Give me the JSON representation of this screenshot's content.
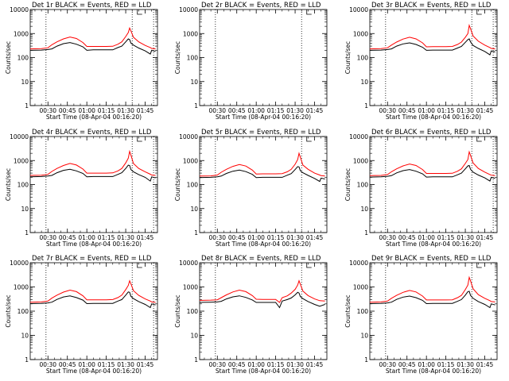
{
  "chart_data": [
    {
      "type": "line",
      "title": "Det 1r BLACK = Events, RED = LLD",
      "xlabel": "Start Time (08-Apr-04 00:16:20)",
      "ylabel": "Counts/sec",
      "yscale": "log",
      "ylim": [
        1,
        10000
      ],
      "xlim": [
        "00:16:20",
        "01:54:30"
      ],
      "x_ticks": [
        "00:30",
        "00:45",
        "01:00",
        "01:15",
        "01:30",
        "01:45"
      ],
      "y_ticks": [
        "1",
        "10",
        "100",
        "1000",
        "10000"
      ],
      "vlines": [
        "00:28:30",
        "01:35:00",
        "01:51:30"
      ],
      "x": [
        "00:16:20",
        "00:25:00",
        "00:30:00",
        "00:33:00",
        "00:37:00",
        "00:42:00",
        "00:47:00",
        "00:52:00",
        "00:57:00",
        "01:00:00",
        "01:05:00",
        "01:10:00",
        "01:15:00",
        "01:20:00",
        "01:24:00",
        "01:27:00",
        "01:30:00",
        "01:32:00",
        "01:33:00",
        "01:34:00",
        "01:36:00",
        "01:40:00",
        "01:45:00",
        "01:49:00",
        "01:50:00",
        "01:53:00"
      ],
      "series": [
        {
          "values": [
            200,
            205,
            215,
            230,
            300,
            380,
            420,
            360,
            280,
            200,
            210,
            210,
            210,
            210,
            260,
            300,
            450,
            600,
            560,
            400,
            330,
            250,
            190,
            140,
            200,
            180
          ],
          "color": "#000000"
        },
        {
          "values": [
            230,
            235,
            255,
            340,
            450,
            600,
            720,
            620,
            420,
            290,
            290,
            290,
            290,
            295,
            360,
            450,
            750,
            1100,
            1700,
            1300,
            700,
            450,
            320,
            260,
            240,
            230
          ],
          "color": "#ff0000"
        }
      ]
    },
    {
      "type": "line",
      "title": "Det 2r BLACK = Events, RED = LLD",
      "xlabel": "Start Time (08-Apr-04 00:16:20)",
      "ylabel": "Counts/sec",
      "yscale": "log",
      "ylim": [
        1,
        10000
      ],
      "xlim": [
        "00:16:20",
        "01:54:30"
      ],
      "x_ticks": [
        "00:30",
        "00:45",
        "01:00",
        "01:15",
        "01:30",
        "01:45"
      ],
      "y_ticks": [
        "1",
        "10",
        "100",
        "1000",
        "10000"
      ],
      "vlines": [
        "00:28:30",
        "01:35:00"
      ],
      "x": [],
      "series": [
        {
          "values": [],
          "color": "#000000"
        },
        {
          "values": [],
          "color": "#ff0000"
        }
      ]
    },
    {
      "type": "line",
      "title": "Det 3r BLACK = Events, RED = LLD",
      "xlabel": "Start Time (08-Apr-04 00:16:20)",
      "ylabel": "Counts/sec",
      "yscale": "log",
      "ylim": [
        1,
        10000
      ],
      "xlim": [
        "00:16:20",
        "01:54:30"
      ],
      "x_ticks": [
        "00:30",
        "00:45",
        "01:00",
        "01:15",
        "01:30",
        "01:45"
      ],
      "y_ticks": [
        "1",
        "10",
        "100",
        "1000",
        "10000"
      ],
      "vlines": [
        "00:28:30",
        "01:35:00",
        "01:51:30"
      ],
      "x": [
        "00:16:20",
        "00:25:00",
        "00:30:00",
        "00:33:00",
        "00:37:00",
        "00:42:00",
        "00:47:00",
        "00:52:00",
        "00:57:00",
        "01:00:00",
        "01:05:00",
        "01:10:00",
        "01:15:00",
        "01:20:00",
        "01:24:00",
        "01:27:00",
        "01:30:00",
        "01:32:00",
        "01:33:00",
        "01:34:00",
        "01:36:00",
        "01:40:00",
        "01:45:00",
        "01:49:00",
        "01:50:00",
        "01:53:00"
      ],
      "series": [
        {
          "values": [
            200,
            205,
            215,
            230,
            300,
            370,
            410,
            350,
            270,
            200,
            205,
            205,
            205,
            205,
            250,
            290,
            430,
            560,
            600,
            450,
            320,
            240,
            180,
            130,
            190,
            170
          ],
          "color": "#000000"
        },
        {
          "values": [
            230,
            235,
            255,
            330,
            440,
            590,
            700,
            600,
            410,
            280,
            285,
            285,
            285,
            290,
            350,
            440,
            700,
            1000,
            2200,
            1600,
            800,
            480,
            330,
            260,
            240,
            230
          ],
          "color": "#ff0000"
        }
      ]
    },
    {
      "type": "line",
      "title": "Det 4r BLACK = Events, RED = LLD",
      "xlabel": "Start Time (08-Apr-04 00:16:20)",
      "ylabel": "Counts/sec",
      "yscale": "log",
      "ylim": [
        1,
        10000
      ],
      "xlim": [
        "00:16:20",
        "01:54:30"
      ],
      "x_ticks": [
        "00:30",
        "00:45",
        "01:00",
        "01:15",
        "01:30",
        "01:45"
      ],
      "y_ticks": [
        "1",
        "10",
        "100",
        "1000",
        "10000"
      ],
      "vlines": [
        "00:28:30",
        "01:35:00",
        "01:51:30"
      ],
      "x": [
        "00:16:20",
        "00:25:00",
        "00:30:00",
        "00:33:00",
        "00:37:00",
        "00:42:00",
        "00:47:00",
        "00:52:00",
        "00:57:00",
        "01:00:00",
        "01:05:00",
        "01:10:00",
        "01:15:00",
        "01:20:00",
        "01:24:00",
        "01:27:00",
        "01:30:00",
        "01:32:00",
        "01:33:00",
        "01:34:00",
        "01:36:00",
        "01:40:00",
        "01:45:00",
        "01:49:00",
        "01:50:00",
        "01:53:00"
      ],
      "series": [
        {
          "values": [
            210,
            215,
            225,
            240,
            310,
            390,
            430,
            370,
            290,
            210,
            215,
            215,
            215,
            215,
            265,
            310,
            470,
            640,
            620,
            420,
            340,
            260,
            200,
            140,
            210,
            190
          ],
          "color": "#000000"
        },
        {
          "values": [
            240,
            245,
            265,
            350,
            470,
            620,
            760,
            650,
            440,
            300,
            300,
            300,
            300,
            305,
            370,
            470,
            800,
            1250,
            2400,
            1700,
            750,
            470,
            340,
            270,
            250,
            240
          ],
          "color": "#ff0000"
        }
      ]
    },
    {
      "type": "line",
      "title": "Det 5r BLACK = Events, RED = LLD",
      "xlabel": "Start Time (08-Apr-04 00:16:20)",
      "ylabel": "Counts/sec",
      "yscale": "log",
      "ylim": [
        1,
        10000
      ],
      "xlim": [
        "00:16:20",
        "01:54:30"
      ],
      "x_ticks": [
        "00:30",
        "00:45",
        "01:00",
        "01:15",
        "01:30",
        "01:45"
      ],
      "y_ticks": [
        "1",
        "10",
        "100",
        "1000",
        "10000"
      ],
      "vlines": [
        "00:28:30",
        "01:35:00"
      ],
      "x": [
        "00:16:20",
        "00:25:00",
        "00:30:00",
        "00:33:00",
        "00:37:00",
        "00:42:00",
        "00:47:00",
        "00:52:00",
        "00:57:00",
        "01:00:00",
        "01:05:00",
        "01:10:00",
        "01:15:00",
        "01:20:00",
        "01:24:00",
        "01:27:00",
        "01:30:00",
        "01:32:00",
        "01:33:00",
        "01:34:00",
        "01:36:00",
        "01:40:00",
        "01:45:00",
        "01:49:00",
        "01:50:00",
        "01:53:00"
      ],
      "series": [
        {
          "values": [
            195,
            200,
            210,
            225,
            290,
            360,
            400,
            345,
            265,
            195,
            200,
            200,
            200,
            200,
            245,
            285,
            420,
            560,
            540,
            380,
            310,
            240,
            180,
            135,
            185,
            170
          ],
          "color": "#000000"
        },
        {
          "values": [
            225,
            230,
            250,
            325,
            430,
            570,
            680,
            590,
            400,
            275,
            280,
            280,
            280,
            285,
            340,
            430,
            700,
            1100,
            2000,
            1400,
            650,
            430,
            300,
            250,
            235,
            225
          ],
          "color": "#ff0000"
        }
      ]
    },
    {
      "type": "line",
      "title": "Det 6r BLACK = Events, RED = LLD",
      "xlabel": "Start Time (08-Apr-04 00:16:20)",
      "ylabel": "Counts/sec",
      "yscale": "log",
      "ylim": [
        1,
        10000
      ],
      "xlim": [
        "00:16:20",
        "01:54:30"
      ],
      "x_ticks": [
        "00:30",
        "00:45",
        "01:00",
        "01:15",
        "01:30",
        "01:45"
      ],
      "y_ticks": [
        "1",
        "10",
        "100",
        "1000",
        "10000"
      ],
      "vlines": [
        "00:28:30",
        "01:35:00",
        "01:51:30"
      ],
      "x": [
        "00:16:20",
        "00:25:00",
        "00:30:00",
        "00:33:00",
        "00:37:00",
        "00:42:00",
        "00:47:00",
        "00:52:00",
        "00:57:00",
        "01:00:00",
        "01:05:00",
        "01:10:00",
        "01:15:00",
        "01:20:00",
        "01:24:00",
        "01:27:00",
        "01:30:00",
        "01:32:00",
        "01:33:00",
        "01:34:00",
        "01:36:00",
        "01:40:00",
        "01:45:00",
        "01:49:00",
        "01:50:00",
        "01:53:00"
      ],
      "series": [
        {
          "values": [
            205,
            210,
            220,
            235,
            305,
            380,
            420,
            360,
            280,
            205,
            210,
            210,
            210,
            210,
            255,
            300,
            450,
            600,
            620,
            430,
            330,
            250,
            190,
            140,
            200,
            180
          ],
          "color": "#000000"
        },
        {
          "values": [
            235,
            240,
            260,
            340,
            450,
            600,
            720,
            620,
            420,
            290,
            290,
            290,
            290,
            295,
            360,
            450,
            760,
            1100,
            2300,
            1650,
            800,
            470,
            330,
            260,
            245,
            235
          ],
          "color": "#ff0000"
        }
      ]
    },
    {
      "type": "line",
      "title": "Det 7r BLACK = Events, RED = LLD",
      "xlabel": "Start Time (08-Apr-04 00:16:20)",
      "ylabel": "Counts/sec",
      "yscale": "log",
      "ylim": [
        1,
        10000
      ],
      "xlim": [
        "00:16:20",
        "01:54:30"
      ],
      "x_ticks": [
        "00:30",
        "00:45",
        "01:00",
        "01:15",
        "01:30",
        "01:45"
      ],
      "y_ticks": [
        "1",
        "10",
        "100",
        "1000",
        "10000"
      ],
      "vlines": [
        "00:28:30",
        "01:35:00",
        "01:51:30"
      ],
      "x": [
        "00:16:20",
        "00:25:00",
        "00:30:00",
        "00:33:00",
        "00:37:00",
        "00:42:00",
        "00:47:00",
        "00:52:00",
        "00:57:00",
        "01:00:00",
        "01:05:00",
        "01:10:00",
        "01:15:00",
        "01:20:00",
        "01:24:00",
        "01:27:00",
        "01:30:00",
        "01:32:00",
        "01:33:00",
        "01:34:00",
        "01:36:00",
        "01:40:00",
        "01:45:00",
        "01:49:00",
        "01:50:00",
        "01:53:00"
      ],
      "series": [
        {
          "values": [
            205,
            210,
            220,
            235,
            305,
            385,
            425,
            365,
            285,
            205,
            210,
            210,
            210,
            210,
            260,
            300,
            460,
            620,
            600,
            410,
            330,
            250,
            190,
            140,
            200,
            180
          ],
          "color": "#000000"
        },
        {
          "values": [
            235,
            240,
            260,
            345,
            460,
            610,
            740,
            640,
            430,
            295,
            295,
            295,
            295,
            300,
            365,
            460,
            780,
            1150,
            1800,
            1350,
            700,
            450,
            320,
            260,
            240,
            230
          ],
          "color": "#ff0000"
        }
      ]
    },
    {
      "type": "line",
      "title": "Det 8r BLACK = Events, RED = LLD",
      "xlabel": "Start Time (08-Apr-04 00:16:20)",
      "ylabel": "Counts/sec",
      "yscale": "log",
      "ylim": [
        1,
        10000
      ],
      "xlim": [
        "00:16:20",
        "01:54:30"
      ],
      "x_ticks": [
        "00:30",
        "00:45",
        "01:00",
        "01:15",
        "01:30",
        "01:45"
      ],
      "y_ticks": [
        "1",
        "10",
        "100",
        "1000",
        "10000"
      ],
      "vlines": [
        "00:28:30",
        "01:35:00"
      ],
      "x": [
        "00:16:20",
        "00:25:00",
        "00:30:00",
        "00:33:00",
        "00:37:00",
        "00:42:00",
        "00:47:00",
        "00:52:00",
        "00:57:00",
        "01:00:00",
        "01:05:00",
        "01:10:00",
        "01:15:00",
        "01:18:00",
        "01:20:00",
        "01:24:00",
        "01:27:00",
        "01:30:00",
        "01:32:00",
        "01:33:00",
        "01:34:00",
        "01:36:00",
        "01:40:00",
        "01:45:00",
        "01:49:00",
        "01:53:00"
      ],
      "series": [
        {
          "values": [
            230,
            235,
            240,
            255,
            320,
            390,
            430,
            370,
            290,
            230,
            230,
            230,
            230,
            140,
            260,
            300,
            350,
            470,
            600,
            560,
            400,
            330,
            250,
            190,
            160,
            190
          ],
          "color": "#000000"
        },
        {
          "values": [
            280,
            285,
            295,
            360,
            470,
            620,
            740,
            640,
            440,
            310,
            305,
            305,
            305,
            230,
            360,
            430,
            560,
            800,
            1200,
            1800,
            1300,
            680,
            440,
            320,
            270,
            260
          ],
          "color": "#ff0000"
        }
      ]
    },
    {
      "type": "line",
      "title": "Det 9r BLACK = Events, RED = LLD",
      "xlabel": "Start Time (08-Apr-04 00:16:20)",
      "ylabel": "Counts/sec",
      "yscale": "log",
      "ylim": [
        1,
        10000
      ],
      "xlim": [
        "00:16:20",
        "01:54:30"
      ],
      "x_ticks": [
        "00:30",
        "00:45",
        "01:00",
        "01:15",
        "01:30",
        "01:45"
      ],
      "y_ticks": [
        "1",
        "10",
        "100",
        "1000",
        "10000"
      ],
      "vlines": [
        "00:28:30",
        "01:35:00"
      ],
      "x": [
        "00:16:20",
        "00:25:00",
        "00:30:00",
        "00:33:00",
        "00:37:00",
        "00:42:00",
        "00:47:00",
        "00:52:00",
        "00:57:00",
        "01:00:00",
        "01:05:00",
        "01:10:00",
        "01:15:00",
        "01:20:00",
        "01:24:00",
        "01:27:00",
        "01:30:00",
        "01:32:00",
        "01:33:00",
        "01:34:00",
        "01:36:00",
        "01:40:00",
        "01:45:00",
        "01:49:00",
        "01:50:00",
        "01:53:00"
      ],
      "series": [
        {
          "values": [
            205,
            210,
            220,
            235,
            305,
            380,
            420,
            360,
            280,
            205,
            210,
            210,
            210,
            210,
            255,
            300,
            460,
            640,
            660,
            450,
            340,
            250,
            190,
            140,
            200,
            180
          ],
          "color": "#000000"
        },
        {
          "values": [
            235,
            240,
            260,
            340,
            450,
            600,
            720,
            620,
            420,
            290,
            290,
            290,
            290,
            295,
            360,
            450,
            780,
            1200,
            2500,
            1800,
            850,
            480,
            340,
            270,
            250,
            240
          ],
          "color": "#ff0000"
        }
      ]
    }
  ]
}
